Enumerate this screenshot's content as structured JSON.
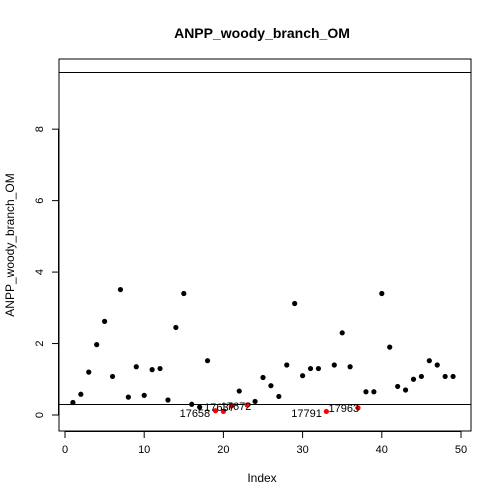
{
  "chart_data": {
    "type": "scatter",
    "title": "ANPP_woody_branch_OM",
    "xlabel": "Index",
    "ylabel": "ANPP_woody_branch_OM",
    "xlim": [
      0,
      50
    ],
    "ylim": [
      0,
      9.6
    ],
    "xticks": [
      "0",
      "10",
      "20",
      "30",
      "40",
      "50"
    ],
    "yticks": [
      "0",
      "2",
      "4",
      "6",
      "8"
    ],
    "hlines": [
      0.32,
      9.6
    ],
    "grid": false,
    "legend": "none",
    "colors": {
      "normal": "#000000",
      "flagged": "#ff0000",
      "line": "#000000"
    },
    "x": [
      1,
      2,
      3,
      4,
      5,
      6,
      7,
      8,
      9,
      10,
      11,
      12,
      13,
      14,
      15,
      16,
      17,
      18,
      19,
      20,
      21,
      22,
      23,
      24,
      25,
      26,
      27,
      28,
      29,
      30,
      31,
      32,
      33,
      34,
      35,
      36,
      37,
      38,
      39,
      40,
      41,
      42,
      43,
      44,
      45,
      46,
      47,
      48,
      49
    ],
    "y": [
      0.35,
      0.58,
      1.2,
      1.97,
      2.62,
      1.08,
      3.51,
      0.5,
      1.35,
      0.55,
      1.27,
      1.3,
      0.42,
      2.45,
      3.4,
      0.3,
      0.22,
      1.52,
      0.12,
      0.1,
      0.25,
      0.67,
      0.28,
      0.38,
      1.05,
      0.82,
      0.52,
      1.4,
      3.12,
      1.1,
      1.3,
      1.3,
      0.1,
      1.4,
      2.3,
      1.35,
      0.2,
      0.65,
      0.65,
      3.4,
      1.9,
      0.8,
      0.7,
      1.0,
      1.08,
      1.52,
      1.4,
      1.08,
      1.08
    ],
    "flagged": [
      false,
      false,
      false,
      false,
      false,
      false,
      false,
      false,
      false,
      false,
      false,
      false,
      false,
      false,
      false,
      false,
      false,
      false,
      true,
      true,
      true,
      false,
      true,
      false,
      false,
      false,
      false,
      false,
      false,
      false,
      false,
      false,
      true,
      false,
      false,
      false,
      true,
      false,
      false,
      false,
      false,
      false,
      false,
      false,
      false,
      false,
      false,
      false,
      false
    ],
    "annotations": [
      {
        "text": "17658",
        "x": 16.4,
        "y": 0.05
      },
      {
        "text": "17637",
        "x": 19.5,
        "y": 0.22
      },
      {
        "text": "17672",
        "x": 21.6,
        "y": 0.25
      },
      {
        "text": "17791",
        "x": 30.5,
        "y": 0.05
      },
      {
        "text": "17963",
        "x": 35.2,
        "y": 0.2
      }
    ]
  }
}
